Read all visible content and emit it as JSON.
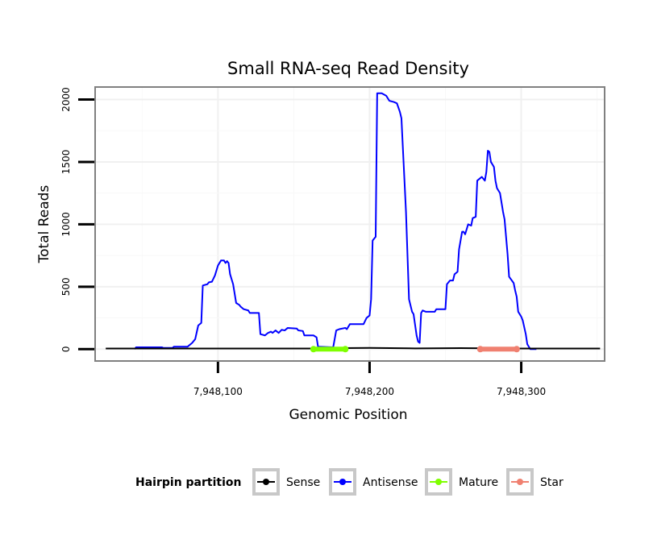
{
  "chart_data": {
    "type": "line",
    "title": "Small RNA-seq Read Density",
    "xlabel": "Genomic Position",
    "ylabel": "Total Reads",
    "xlim": [
      7948019,
      7948355
    ],
    "ylim": [
      -95,
      2100
    ],
    "x_ticks": [
      7948100,
      7948200,
      7948300
    ],
    "x_tick_labels": [
      "7,948,100",
      "7,948,200",
      "7,948,300"
    ],
    "y_ticks": [
      0,
      500,
      1000,
      1500,
      2000
    ],
    "y_tick_labels": [
      "0",
      "500",
      "1000",
      "1500",
      "2000"
    ],
    "grid": true,
    "legend": {
      "title": "Hairpin partition",
      "position": "bottom",
      "entries": [
        {
          "name": "Sense",
          "color": "#000000"
        },
        {
          "name": "Antisense",
          "color": "#0000ff"
        },
        {
          "name": "Mature",
          "color": "#7fff00"
        },
        {
          "name": "Star",
          "color": "#f08070"
        }
      ]
    },
    "series": [
      {
        "name": "Sense",
        "color": "#000000",
        "points": [
          [
            7948026,
            5
          ],
          [
            7948160,
            5
          ],
          [
            7948182,
            8
          ],
          [
            7948200,
            10
          ],
          [
            7948230,
            6
          ],
          [
            7948260,
            8
          ],
          [
            7948300,
            5
          ],
          [
            7948352,
            5
          ]
        ]
      },
      {
        "name": "Antisense",
        "color": "#0000ff",
        "points": [
          [
            7948045,
            0
          ],
          [
            7948046,
            15
          ],
          [
            7948063,
            15
          ],
          [
            7948064,
            10
          ],
          [
            7948070,
            10
          ],
          [
            7948071,
            20
          ],
          [
            7948080,
            20
          ],
          [
            7948083,
            50
          ],
          [
            7948085,
            80
          ],
          [
            7948087,
            190
          ],
          [
            7948089,
            210
          ],
          [
            7948090,
            510
          ],
          [
            7948093,
            520
          ],
          [
            7948094,
            535
          ],
          [
            7948096,
            540
          ],
          [
            7948098,
            590
          ],
          [
            7948100,
            670
          ],
          [
            7948102,
            710
          ],
          [
            7948104,
            710
          ],
          [
            7948105,
            690
          ],
          [
            7948106,
            705
          ],
          [
            7948107,
            690
          ],
          [
            7948108,
            600
          ],
          [
            7948110,
            520
          ],
          [
            7948112,
            370
          ],
          [
            7948114,
            355
          ],
          [
            7948115,
            340
          ],
          [
            7948117,
            320
          ],
          [
            7948120,
            310
          ],
          [
            7948121,
            290
          ],
          [
            7948127,
            290
          ],
          [
            7948128,
            120
          ],
          [
            7948131,
            110
          ],
          [
            7948133,
            130
          ],
          [
            7948135,
            140
          ],
          [
            7948136,
            130
          ],
          [
            7948138,
            150
          ],
          [
            7948140,
            130
          ],
          [
            7948142,
            155
          ],
          [
            7948144,
            150
          ],
          [
            7948146,
            170
          ],
          [
            7948152,
            165
          ],
          [
            7948153,
            150
          ],
          [
            7948156,
            145
          ],
          [
            7948157,
            110
          ],
          [
            7948163,
            110
          ],
          [
            7948165,
            95
          ],
          [
            7948166,
            20
          ],
          [
            7948176,
            15
          ],
          [
            7948178,
            150
          ],
          [
            7948180,
            160
          ],
          [
            7948184,
            170
          ],
          [
            7948185,
            160
          ],
          [
            7948187,
            200
          ],
          [
            7948196,
            200
          ],
          [
            7948198,
            250
          ],
          [
            7948200,
            270
          ],
          [
            7948201,
            400
          ],
          [
            7948202,
            870
          ],
          [
            7948204,
            900
          ],
          [
            7948205,
            2050
          ],
          [
            7948208,
            2050
          ],
          [
            7948211,
            2030
          ],
          [
            7948213,
            1990
          ],
          [
            7948216,
            1980
          ],
          [
            7948218,
            1970
          ],
          [
            7948220,
            1900
          ],
          [
            7948221,
            1850
          ],
          [
            7948222,
            1600
          ],
          [
            7948224,
            1100
          ],
          [
            7948226,
            400
          ],
          [
            7948228,
            300
          ],
          [
            7948229,
            280
          ],
          [
            7948231,
            110
          ],
          [
            7948232,
            60
          ],
          [
            7948233,
            50
          ],
          [
            7948234,
            290
          ],
          [
            7948235,
            310
          ],
          [
            7948237,
            300
          ],
          [
            7948243,
            300
          ],
          [
            7948244,
            320
          ],
          [
            7948250,
            320
          ],
          [
            7948251,
            520
          ],
          [
            7948253,
            550
          ],
          [
            7948255,
            550
          ],
          [
            7948256,
            600
          ],
          [
            7948258,
            620
          ],
          [
            7948259,
            800
          ],
          [
            7948261,
            940
          ],
          [
            7948262,
            940
          ],
          [
            7948263,
            920
          ],
          [
            7948265,
            1000
          ],
          [
            7948267,
            990
          ],
          [
            7948268,
            1050
          ],
          [
            7948270,
            1060
          ],
          [
            7948271,
            1350
          ],
          [
            7948273,
            1370
          ],
          [
            7948274,
            1380
          ],
          [
            7948276,
            1350
          ],
          [
            7948277,
            1420
          ],
          [
            7948278,
            1590
          ],
          [
            7948279,
            1580
          ],
          [
            7948280,
            1500
          ],
          [
            7948282,
            1460
          ],
          [
            7948283,
            1350
          ],
          [
            7948284,
            1290
          ],
          [
            7948286,
            1250
          ],
          [
            7948288,
            1100
          ],
          [
            7948289,
            1040
          ],
          [
            7948291,
            760
          ],
          [
            7948292,
            580
          ],
          [
            7948295,
            530
          ],
          [
            7948296,
            470
          ],
          [
            7948297,
            420
          ],
          [
            7948298,
            300
          ],
          [
            7948300,
            260
          ],
          [
            7948301,
            230
          ],
          [
            7948303,
            120
          ],
          [
            7948304,
            40
          ],
          [
            7948306,
            0
          ],
          [
            7948310,
            0
          ]
        ]
      },
      {
        "name": "Mature",
        "color": "#7fff00",
        "points": [
          [
            7948163,
            0
          ],
          [
            7948184,
            0
          ]
        ]
      },
      {
        "name": "Star",
        "color": "#f08070",
        "points": [
          [
            7948273,
            0
          ],
          [
            7948297,
            0
          ]
        ]
      }
    ]
  }
}
